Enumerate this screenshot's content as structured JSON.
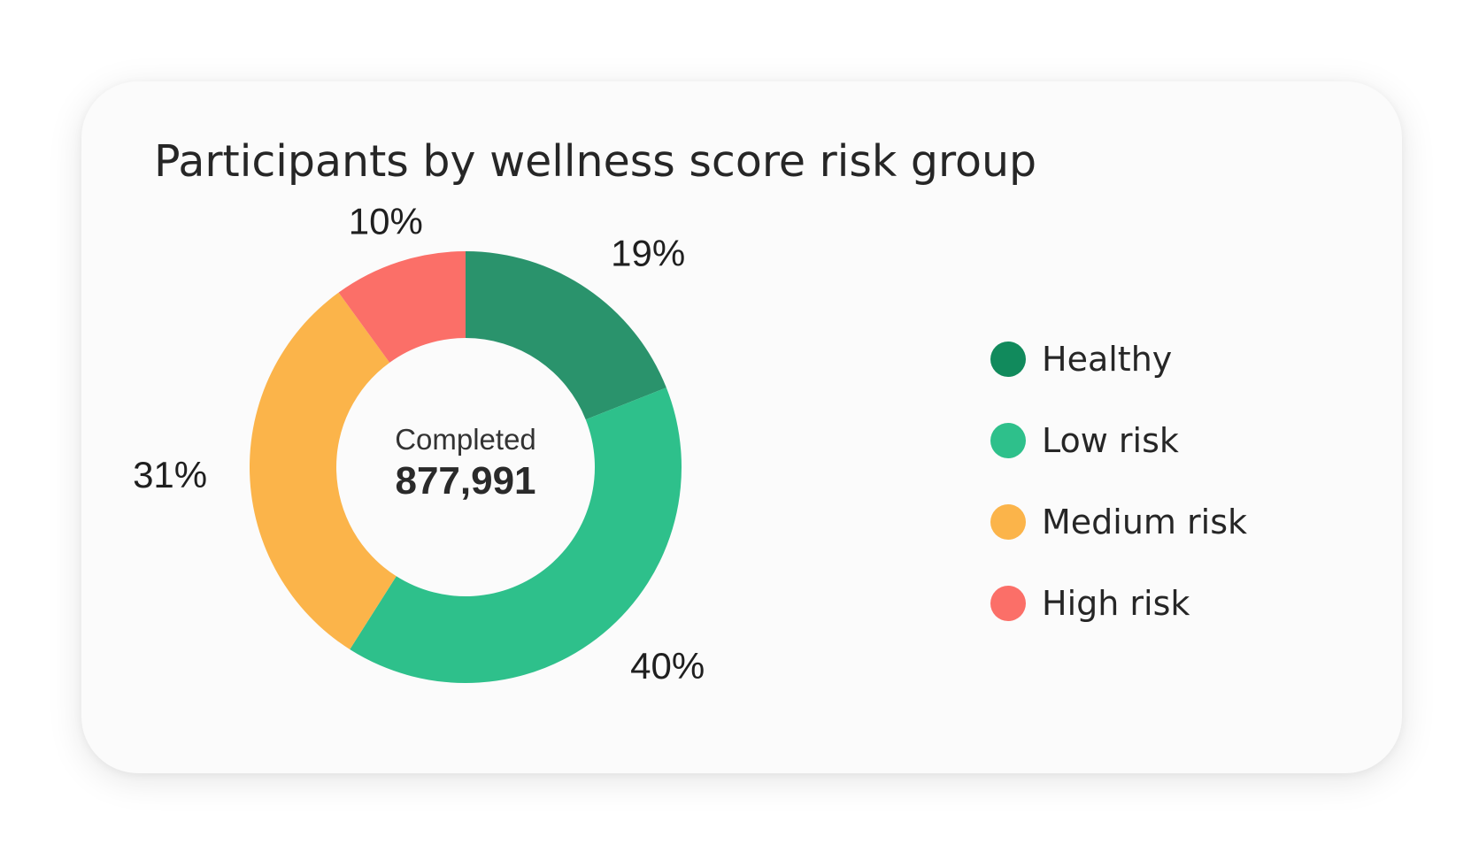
{
  "chart_data": {
    "type": "pie",
    "title": "Participants by wellness score risk group",
    "categories": [
      "Healthy",
      "Low risk",
      "Medium risk",
      "High risk"
    ],
    "values": [
      19,
      40,
      31,
      10
    ],
    "value_labels": [
      "19%",
      "40%",
      "31%",
      "10%"
    ],
    "colors": [
      "#2a936c",
      "#2ec08b",
      "#fbb44a",
      "#fb6f68"
    ],
    "legend_colors": [
      "#118a5c",
      "#2ec08b",
      "#fbb44a",
      "#fb6f68"
    ],
    "donut": true,
    "center": {
      "caption": "Completed",
      "value": "877,991"
    },
    "legend_position": "right"
  }
}
